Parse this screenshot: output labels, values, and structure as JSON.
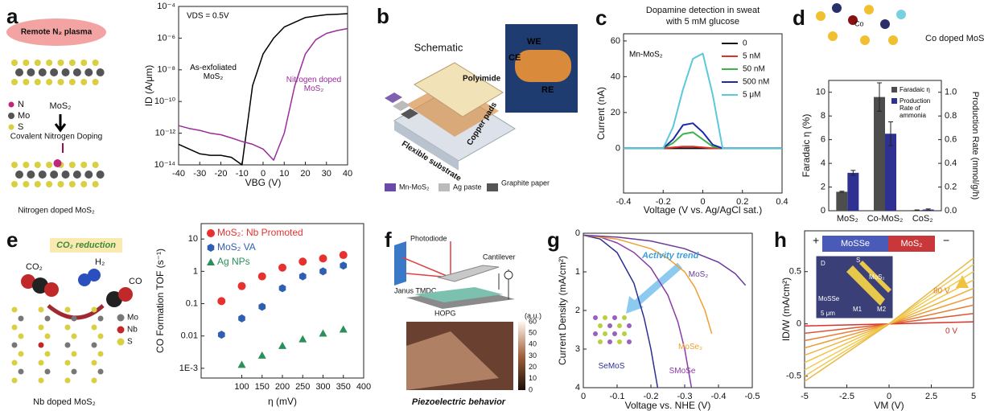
{
  "panels": [
    {
      "label": "a",
      "texts": [
        "Remote N₂ plasma",
        "MoS₂",
        "N",
        "Mo",
        "S",
        "Covalent Nitrogen Doping",
        "Nitrogen doped MoS₂"
      ]
    },
    {
      "label": "b",
      "texts": [
        "Schematic",
        "Polyimide",
        "Copper pads",
        "Flexible substrate",
        "WE",
        "CE",
        "RE",
        "Mn-MoS₂",
        "Ag paste",
        "Graphite paper"
      ]
    },
    {
      "label": "c",
      "texts": []
    },
    {
      "label": "d",
      "texts": [
        "Co",
        "Co doped MoS"
      ]
    },
    {
      "label": "e",
      "texts": [
        "CO₂ reduction",
        "CO₂",
        "H₂",
        "CO",
        "Mo",
        "Nb",
        "S",
        "Nb doped MoS₂"
      ]
    },
    {
      "label": "f",
      "texts": [
        "Photodiode",
        "Cantilever",
        "Janus TMDC",
        "HOPG",
        "(a.u.)",
        "Piezoelectric behavior"
      ],
      "colorbar_ticks": [
        0,
        10,
        20,
        30,
        40,
        50,
        60
      ]
    },
    {
      "label": "g",
      "texts": []
    },
    {
      "label": "h",
      "texts": [
        "MoSSe",
        "MoS₂",
        "+",
        "−",
        "D",
        "S",
        "MoS₂",
        "MoSSe",
        "M1",
        "M2",
        "5 μm"
      ]
    }
  ],
  "chart_data": [
    {
      "type": "line",
      "yscale": "log",
      "xlabel": "VBG (V)",
      "ylabel": "ID (A/μm)",
      "annotations": [
        "VDS = 0.5V"
      ],
      "x": [
        -40,
        -35,
        -30,
        -25,
        -20,
        -15,
        -10,
        -5,
        0,
        5,
        10,
        15,
        20,
        25,
        30,
        35,
        40
      ],
      "xlim": [
        -40,
        40
      ],
      "xticks": [
        -40,
        -30,
        -20,
        -10,
        0,
        10,
        20,
        30,
        40
      ],
      "ylim": [
        1e-14,
        0.0001
      ],
      "yticks": [
        {
          "value": 1e-14,
          "label": "10⁻¹⁴"
        },
        {
          "value": 1e-12,
          "label": "10⁻¹²"
        },
        {
          "value": 1e-10,
          "label": "10⁻¹⁰"
        },
        {
          "value": 1e-08,
          "label": "10⁻⁸"
        },
        {
          "value": 1e-06,
          "label": "10⁻⁶"
        },
        {
          "value": 0.0001,
          "label": "10⁻⁴"
        }
      ],
      "series": [
        {
          "name": "As-exfoliated MoS₂",
          "color": "#000000",
          "values": [
            2e-13,
            1e-13,
            5e-14,
            4e-14,
            4e-14,
            3e-14,
            1e-14,
            1e-09,
            1e-07,
            1e-06,
            5e-06,
            1e-05,
            2e-05,
            2.5e-05,
            3e-05,
            3.2e-05,
            3.5e-05
          ]
        },
        {
          "name": "Nitrogen doped MoS₂",
          "color": "#9b2c9b",
          "values": [
            3e-12,
            2e-12,
            1.5e-12,
            1e-12,
            8e-13,
            5e-13,
            3e-13,
            2e-13,
            1e-13,
            2e-14,
            1e-12,
            1e-09,
            1e-07,
            8e-07,
            2e-06,
            3e-06,
            4e-06
          ]
        }
      ]
    },
    {
      "type": "line",
      "title": [
        "Dopamine detection in sweat",
        "with 5 mM glucose"
      ],
      "xlabel": "Voltage (V vs. Ag/AgCl sat.)",
      "ylabel": "Current (nA)",
      "annotations": [
        "Mn-MoS₂"
      ],
      "legend": "top-right",
      "x": [
        -0.4,
        -0.3,
        -0.2,
        -0.15,
        -0.1,
        -0.05,
        0,
        0.05,
        0.1,
        0.2,
        0.3,
        0.4
      ],
      "xlim": [
        -0.4,
        0.4
      ],
      "xticks": [
        -0.4,
        -0.2,
        0,
        0.2,
        0.4
      ],
      "ylim": [
        -25,
        64
      ],
      "yticks": [
        0,
        20,
        40,
        60
      ],
      "series": [
        {
          "name": "0",
          "color": "#111111",
          "values": [
            0,
            0,
            0,
            0,
            0,
            0,
            0,
            0,
            0,
            0,
            0,
            0
          ]
        },
        {
          "name": "5 nM",
          "color": "#e0302a",
          "values": [
            0,
            0,
            0,
            0.5,
            1,
            1,
            0.5,
            0,
            0,
            0,
            0,
            0
          ]
        },
        {
          "name": "50 nM",
          "color": "#3cb44b",
          "values": [
            0,
            0,
            0,
            3,
            8,
            9,
            5,
            1,
            0,
            0,
            0,
            0
          ]
        },
        {
          "name": "500 nM",
          "color": "#1f2aa8",
          "values": [
            0,
            0,
            0,
            5,
            13,
            14,
            9,
            2,
            0,
            0,
            0,
            0
          ]
        },
        {
          "name": "5 μM",
          "color": "#5bc8dc",
          "values": [
            0,
            0,
            0,
            12,
            33,
            50,
            53,
            30,
            0,
            0,
            0,
            0
          ]
        }
      ]
    },
    {
      "type": "bar",
      "ylabel": "Faradaic η (%)",
      "y2label": "Production Rate (mmol/g/h)",
      "legend": "top-right",
      "categories": [
        "MoS₂",
        "Co-MoS₂",
        "CoS₂"
      ],
      "ylim": [
        0,
        11
      ],
      "yticks": [
        0,
        2,
        4,
        6,
        8,
        10
      ],
      "y2lim": [
        0,
        1.1
      ],
      "y2ticks": [
        {
          "value": 0,
          "label": "0.0"
        },
        0.2,
        0.4,
        0.6,
        0.8,
        {
          "value": 1,
          "label": "1.0"
        }
      ],
      "series": [
        {
          "name": "Faradaic η",
          "color": "#4d4d4d",
          "values": [
            1.6,
            9.6,
            0.05
          ],
          "errors": [
            0.05,
            1.2,
            0.02
          ]
        },
        {
          "name": "Production Rate of ammonia",
          "color": "#2e3192",
          "axis": "y2",
          "values": [
            0.32,
            0.65,
            0.01
          ],
          "errors": [
            0.02,
            0.1,
            0.005
          ]
        }
      ]
    },
    {
      "type": "scatter",
      "yscale": "log",
      "xlabel": "η (mV)",
      "ylabel": "CO Formation TOF (s⁻¹)",
      "legend": "top-left",
      "xlim": [
        0,
        400
      ],
      "xticks": [
        100,
        150,
        200,
        250,
        300,
        350,
        400
      ],
      "ylim": [
        0.0005,
        30
      ],
      "yticks": [
        {
          "value": 0.001,
          "label": "1E-3"
        },
        0.01,
        0.1,
        1,
        10
      ],
      "series": [
        {
          "name": "MoS₂: Nb Promoted",
          "color": "#e8312f",
          "marker": "circle",
          "x": [
            50,
            100,
            150,
            200,
            250,
            300,
            350
          ],
          "values": [
            0.12,
            0.35,
            0.7,
            1.3,
            2,
            2.5,
            3.2
          ]
        },
        {
          "name": "MoS₂ VA",
          "color": "#2f5fb3",
          "marker": "hexagon",
          "x": [
            50,
            100,
            150,
            200,
            250,
            300,
            350
          ],
          "values": [
            0.011,
            0.035,
            0.08,
            0.3,
            0.7,
            1,
            1.5
          ]
        },
        {
          "name": "Ag NPs",
          "color": "#2a8f5a",
          "marker": "triangle",
          "x": [
            100,
            150,
            200,
            250,
            300,
            350
          ],
          "values": [
            0.0013,
            0.0025,
            0.005,
            0.008,
            0.012,
            0.016
          ]
        }
      ]
    },
    {
      "type": "line",
      "xlabel": "Voltage vs. NHE (V)",
      "ylabel": "Current Density (mA/cm²)",
      "annotations": [
        "Activity trend"
      ],
      "xlim": [
        0,
        -0.5
      ],
      "xticks": [
        0,
        -0.1,
        -0.2,
        -0.3,
        -0.4,
        -0.5
      ],
      "ylim": [
        4,
        0
      ],
      "yticks": [
        0,
        1,
        2,
        3,
        4
      ],
      "series": [
        {
          "name": "SeMoS",
          "color": "#2a2f8f",
          "x": [
            0,
            -0.05,
            -0.1,
            -0.15,
            -0.18,
            -0.2,
            -0.21,
            -0.22
          ],
          "values": [
            0.05,
            0.15,
            0.5,
            1.3,
            2.2,
            3,
            3.5,
            4
          ]
        },
        {
          "name": "SMoSe",
          "color": "#8a3aa8",
          "x": [
            0,
            -0.05,
            -0.1,
            -0.15,
            -0.2,
            -0.25,
            -0.28,
            -0.3,
            -0.32
          ],
          "values": [
            0.05,
            0.1,
            0.25,
            0.5,
            0.9,
            1.6,
            2.3,
            3,
            4
          ]
        },
        {
          "name": "MoSe₂",
          "color": "#f0a030",
          "x": [
            0,
            -0.1,
            -0.2,
            -0.25,
            -0.3,
            -0.33,
            -0.36,
            -0.38
          ],
          "values": [
            0.05,
            0.15,
            0.4,
            0.65,
            1,
            1.4,
            2,
            2.6
          ]
        },
        {
          "name": "MoS₂",
          "color": "#6a3a9a",
          "x": [
            0,
            -0.1,
            -0.2,
            -0.3,
            -0.4,
            -0.45,
            -0.48
          ],
          "values": [
            0.05,
            0.1,
            0.2,
            0.4,
            0.75,
            1.05,
            1.35
          ]
        }
      ]
    },
    {
      "type": "line",
      "xlabel": "VM (V)",
      "ylabel": "ID/W (mA/cm²)",
      "annotations": [
        "80 V",
        "0 V"
      ],
      "x": [
        -5,
        0,
        5
      ],
      "xlim": [
        -5,
        5
      ],
      "xticks": [
        -5,
        -2.5,
        0,
        2.5,
        5
      ],
      "ylim": [
        -0.61,
        0.89
      ],
      "yticks": [
        -0.5,
        0,
        0.5
      ],
      "series": [
        {
          "color": "#d8322a",
          "values": [
            -0.02,
            0,
            0.02
          ]
        },
        {
          "color": "#e0562c",
          "values": [
            -0.09,
            0,
            0.1
          ]
        },
        {
          "color": "#e87a30",
          "values": [
            -0.16,
            0,
            0.18
          ]
        },
        {
          "color": "#ee9a36",
          "values": [
            -0.23,
            0,
            0.26
          ]
        },
        {
          "color": "#f0b23c",
          "values": [
            -0.3,
            0,
            0.34
          ]
        },
        {
          "color": "#f2c444",
          "values": [
            -0.37,
            0,
            0.42
          ]
        },
        {
          "color": "#f0cc52",
          "values": [
            -0.44,
            0,
            0.5
          ]
        },
        {
          "color": "#eec95a",
          "values": [
            -0.5,
            0,
            0.57
          ]
        },
        {
          "color": "#e8b844",
          "values": [
            -0.55,
            0,
            0.63
          ]
        }
      ]
    }
  ]
}
